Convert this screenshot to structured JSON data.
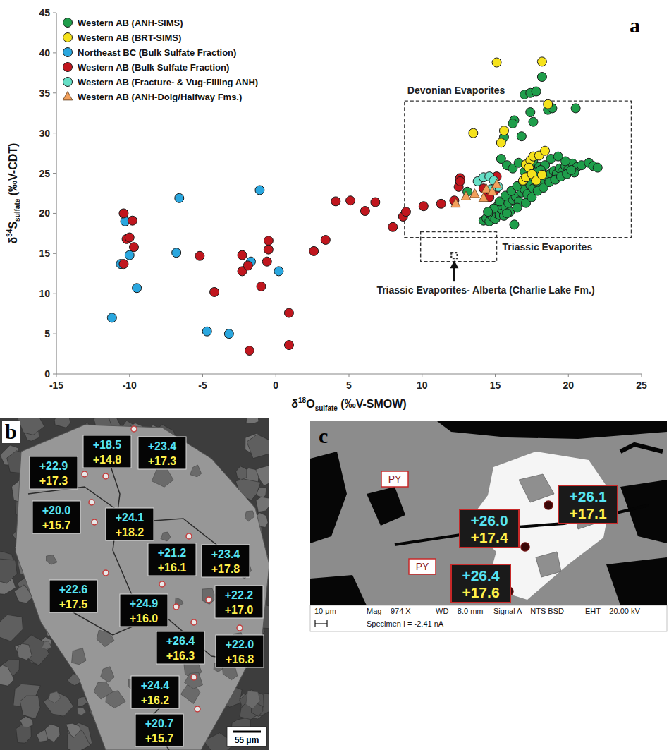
{
  "chart_data": {
    "type": "scatter",
    "panel_label": "a",
    "x_label": "δ18Osulfate (‰V-SMOW)",
    "y_label": "δ34Ssulfate (‰V-CDT)",
    "xlim": [
      -15,
      25
    ],
    "xticks": [
      -15,
      -10,
      -5,
      0,
      5,
      10,
      15,
      20,
      25
    ],
    "ylim": [
      0,
      45
    ],
    "yticks": [
      0,
      5,
      10,
      15,
      20,
      25,
      30,
      35,
      40,
      45
    ],
    "grid": false,
    "legend": "top-left",
    "series": [
      {
        "name": "Western AB (ANH-SIMS)",
        "color": "#1f9e4b",
        "marker": "circle",
        "x": [
          14.2,
          14.4,
          14.6,
          14.8,
          15.0,
          15.1,
          15.3,
          15.5,
          15.2,
          15.7,
          15.9,
          16.0,
          16.2,
          16.4,
          16.6,
          16.8,
          17.0,
          17.2,
          17.4,
          17.6,
          17.8,
          18.0,
          18.2,
          18.4,
          18.6,
          18.8,
          19.0,
          19.2,
          19.4,
          19.6,
          19.8,
          20.0,
          20.3,
          20.6,
          20.9,
          21.4,
          21.7,
          22.0,
          16.3,
          15.6,
          15.8,
          16.5,
          17.1,
          17.5,
          17.9,
          18.3,
          18.7,
          19.1,
          19.5,
          19.9,
          20.4,
          15.4,
          15.8,
          16.2,
          16.6,
          17.0,
          17.6,
          18.0,
          18.4,
          18.8,
          19.3,
          19.8,
          20.2,
          14.9,
          15.3,
          15.7,
          16.1,
          16.5,
          16.9,
          17.3,
          17.7,
          18.1,
          16.3,
          16.2,
          16.8,
          15.6,
          17.0,
          17.4,
          17.8,
          18.2,
          17.4,
          17.6,
          18.6,
          18.9,
          20.5,
          13.1,
          14.5
        ],
        "values": [
          19.1,
          19.4,
          19.0,
          19.6,
          19.3,
          20.0,
          19.8,
          20.4,
          21.0,
          20.8,
          21.3,
          20.2,
          21.7,
          22.1,
          21.5,
          22.6,
          23.0,
          22.4,
          23.5,
          23.1,
          24.0,
          23.6,
          24.3,
          24.8,
          24.5,
          25.0,
          25.3,
          24.9,
          25.6,
          25.2,
          25.9,
          25.5,
          26.2,
          25.8,
          26.0,
          26.3,
          25.9,
          25.7,
          18.6,
          19.7,
          20.0,
          20.7,
          21.3,
          22.0,
          22.8,
          23.2,
          23.9,
          24.2,
          24.6,
          24.9,
          25.1,
          26.8,
          26.0,
          25.6,
          26.3,
          25.2,
          26.4,
          25.8,
          26.0,
          26.8,
          27.1,
          26.5,
          25.4,
          20.6,
          21.5,
          22.2,
          22.8,
          23.4,
          24.0,
          24.6,
          25.1,
          25.4,
          31.6,
          31.2,
          29.6,
          29.5,
          34.8,
          35.0,
          35.2,
          37.0,
          32.6,
          31.4,
          32.9,
          33.1,
          33.1,
          22.7,
          20.2
        ]
      },
      {
        "name": "Western AB (BRT-SIMS)",
        "color": "#f5e21c",
        "marker": "circle",
        "x": [
          15.1,
          18.2,
          13.5,
          15.6,
          15.4,
          18.6,
          17.1,
          17.4,
          17.6,
          18.0,
          18.4,
          17.3,
          16.9,
          17.1,
          17.5,
          17.8,
          18.2
        ],
        "values": [
          38.8,
          38.9,
          30.0,
          30.3,
          28.8,
          33.6,
          26.1,
          26.6,
          27.1,
          27.2,
          27.8,
          25.7,
          24.1,
          24.5,
          24.9,
          24.1,
          24.8
        ]
      },
      {
        "name": "Northeast BC (Bulk Sulfate Fraction)",
        "color": "#2aa7df",
        "marker": "circle",
        "x": [
          -11.2,
          -10.6,
          -10.3,
          -10.0,
          -9.5,
          -6.6,
          -6.8,
          -4.7,
          -3.2,
          -1.7,
          -1.1,
          0.2
        ],
        "values": [
          7.0,
          13.7,
          19.0,
          14.8,
          10.7,
          21.9,
          15.1,
          5.3,
          5.0,
          14.0,
          22.9,
          12.8
        ]
      },
      {
        "name": "Western AB (Bulk Sulfate Fraction)",
        "color": "#c0161e",
        "marker": "circle",
        "x": [
          -10.4,
          -10.2,
          -9.8,
          -9.7,
          -10.0,
          -10.4,
          -5.2,
          -4.2,
          -2.3,
          -2.3,
          -1.9,
          -1.8,
          -1.0,
          -0.5,
          -0.5,
          -0.6,
          0.9,
          0.9,
          2.6,
          3.4,
          4.1,
          5.1,
          6.1,
          6.8,
          8.0,
          8.7,
          8.9,
          10.1,
          11.3,
          12.2,
          12.5,
          12.6,
          12.6,
          14.2,
          14.5,
          14.6,
          15.0,
          15.1
        ],
        "values": [
          20.0,
          16.8,
          19.1,
          15.8,
          17.0,
          13.7,
          14.7,
          10.2,
          14.8,
          12.8,
          13.5,
          2.9,
          10.9,
          16.6,
          15.5,
          14.0,
          7.6,
          3.6,
          15.3,
          16.7,
          21.5,
          21.6,
          20.3,
          21.4,
          18.3,
          19.6,
          20.2,
          20.9,
          21.2,
          21.6,
          23.3,
          24.4,
          24.0,
          23.1,
          22.5,
          22.0,
          22.9,
          24.6
        ]
      },
      {
        "name": "Western AB (Fracture- & Vug-Filling ANH)",
        "color": "#66dfc6",
        "marker": "circle",
        "x": [
          13.8,
          14.2,
          14.6,
          14.9,
          15.2,
          14.7
        ],
        "values": [
          24.0,
          24.5,
          24.6,
          24.1,
          23.3,
          23.0
        ]
      },
      {
        "name": "Western AB (ANH-Doig/Halfway Fms.)",
        "color": "#f2a05c",
        "marker": "triangle",
        "x": [
          12.3,
          13.0,
          13.6,
          14.4,
          14.8,
          15.1,
          14.2
        ],
        "values": [
          21.2,
          22.1,
          22.4,
          23.0,
          22.7,
          23.6,
          21.9
        ]
      }
    ],
    "annotations": [
      {
        "text": "Devonian Evaporites",
        "xlim": [
          8.8,
          24.3
        ],
        "ylim": [
          17,
          34
        ]
      },
      {
        "text": "Triassic Evaporites",
        "xlim": [
          9.9,
          15.1
        ],
        "ylim": [
          14,
          17.7
        ]
      },
      {
        "text": "Triassic Evaporites- Alberta (Charlie Lake Fm.)",
        "xlim": [
          12.0,
          12.4
        ],
        "ylim": [
          14.4,
          15.1
        ]
      }
    ]
  },
  "panel_b": {
    "label": "b",
    "scale_bar": "55 μm",
    "spots": [
      {
        "d34S": "+22.9",
        "d18O": "+17.3"
      },
      {
        "d34S": "+18.5",
        "d18O": "+14.8"
      },
      {
        "d34S": "+23.4",
        "d18O": "+17.3"
      },
      {
        "d34S": "+20.0",
        "d18O": "+15.7"
      },
      {
        "d34S": "+24.1",
        "d18O": "+18.2"
      },
      {
        "d34S": "+21.2",
        "d18O": "+16.1"
      },
      {
        "d34S": "+23.4",
        "d18O": "+17.8"
      },
      {
        "d34S": "+22.6",
        "d18O": "+17.5"
      },
      {
        "d34S": "+24.9",
        "d18O": "+16.0"
      },
      {
        "d34S": "+22.2",
        "d18O": "+17.0"
      },
      {
        "d34S": "+26.4",
        "d18O": "+16.3"
      },
      {
        "d34S": "+22.0",
        "d18O": "+16.8"
      },
      {
        "d34S": "+24.4",
        "d18O": "+16.2"
      },
      {
        "d34S": "+20.7",
        "d18O": "+15.7"
      }
    ]
  },
  "panel_c": {
    "label": "c",
    "minerals": [
      "PY",
      "PY"
    ],
    "spots": [
      {
        "d34S": "+26.1",
        "d18O": "+17.1"
      },
      {
        "d34S": "+26.0",
        "d18O": "+17.4"
      },
      {
        "d34S": "+26.4",
        "d18O": "+17.6"
      }
    ],
    "info_bar": [
      "10 μm",
      "Mag = 974 X",
      "WD = 8.0 mm",
      "Signal A = NTS BSD",
      "EHT = 20.00 kV",
      "Specimen I = -2.41 nA"
    ]
  }
}
